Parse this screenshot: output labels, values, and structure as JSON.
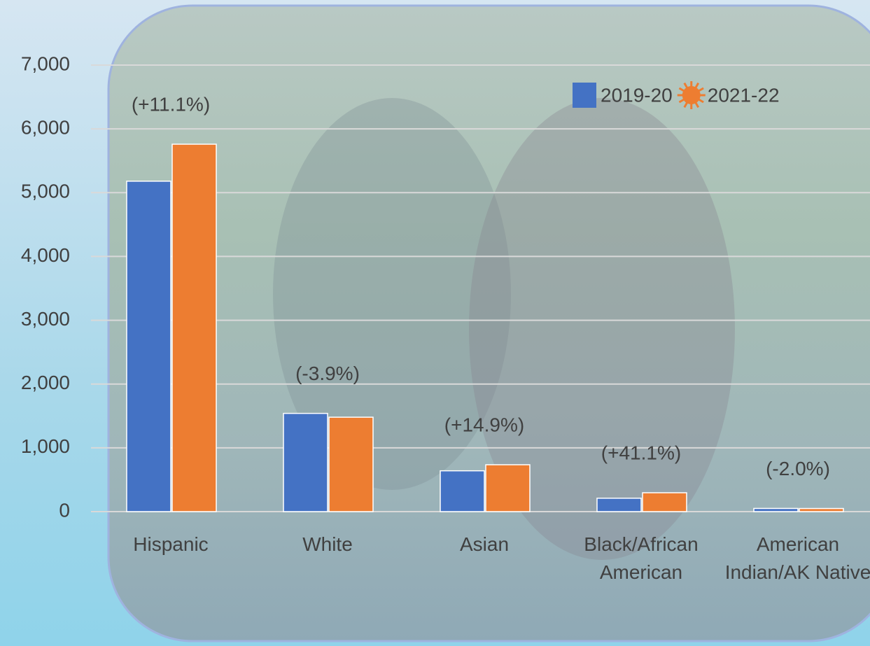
{
  "chart_data": {
    "type": "bar",
    "categories": [
      "Hispanic",
      "White",
      "Asian",
      "Black/African American",
      "American Indian/AK Native"
    ],
    "series": [
      {
        "name": "2019-20",
        "color": "#4472c4",
        "values": [
          5180,
          1540,
          640,
          210,
          50
        ]
      },
      {
        "name": "2021-22",
        "color": "#ed7d31",
        "values": [
          5760,
          1480,
          735,
          296,
          49
        ]
      }
    ],
    "annotations": [
      "(+11.1%)",
      "(-3.9%)",
      "(+14.9%)",
      "(+41.1%)",
      "(-2.0%)"
    ],
    "ylim": [
      0,
      7000
    ],
    "yticks": [
      0,
      {
        "value": 1000,
        "label": "1,000"
      },
      {
        "value": 2000,
        "label": "2,000"
      },
      {
        "value": 3000,
        "label": "3,000"
      },
      {
        "value": 4000,
        "label": "4,000"
      },
      {
        "value": 5000,
        "label": "5,000"
      },
      {
        "value": 6000,
        "label": "6,000"
      },
      {
        "value": 7000,
        "label": "7,000"
      }
    ],
    "grid": true,
    "legend": "top-right"
  }
}
